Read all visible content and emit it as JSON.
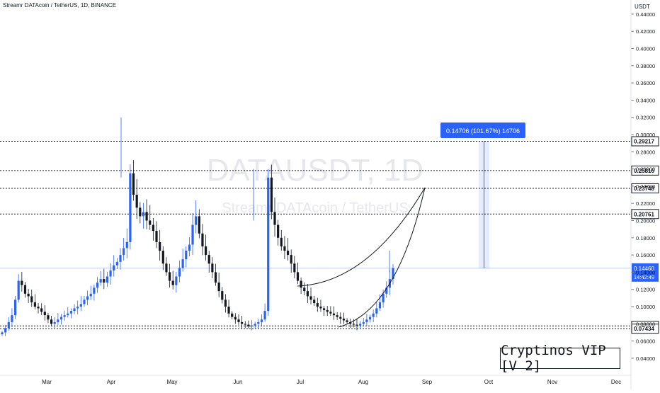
{
  "header": {
    "title": "Streamr DATAcoin / TetherUS, 1D, BINANCE"
  },
  "axis": {
    "unit": "USDT"
  },
  "watermark": {
    "symbol": "DATAUSDT, 1D",
    "name": "Streamr DATAcoin / TetherUS"
  },
  "badge": {
    "text": "Cryptinos VIP [V 2]"
  },
  "measure": {
    "label": "0.14706 (101.67%) 14706",
    "from": 0.1446,
    "to": 0.29217
  },
  "current": {
    "price": "0.14460",
    "countdown": "14:42:49"
  },
  "colors": {
    "up": "#2962ff",
    "down": "#131722",
    "accent": "#2962ff",
    "grid": "#e0e3eb"
  },
  "chart_data": {
    "type": "candlestick",
    "x_ticks": [
      "Mar",
      "Apr",
      "May",
      "Jun",
      "Jul",
      "Aug",
      "Sep",
      "Oct",
      "Nov",
      "Dec"
    ],
    "y_ticks": [
      "0.04000",
      "0.06000",
      "0.08000",
      "0.10000",
      "0.12000",
      "0.14000",
      "0.16000",
      "0.18000",
      "0.20000",
      "0.22000",
      "0.24000",
      "0.26000",
      "0.28000",
      "0.30000",
      "0.32000",
      "0.34000",
      "0.36000",
      "0.38000",
      "0.40000",
      "0.42000",
      "0.44000"
    ],
    "ylim": [
      0.03,
      0.45
    ],
    "levels": [
      {
        "value": 0.29217,
        "label": "0.29217"
      },
      {
        "value": 0.25816,
        "label": "0.25816"
      },
      {
        "value": 0.23748,
        "label": "0.23748"
      },
      {
        "value": 0.20761,
        "label": "0.20761"
      },
      {
        "value": 0.07755,
        "label": "0.07755"
      },
      {
        "value": 0.07434,
        "label": "0.07434"
      }
    ],
    "close_series": [
      0.07,
      0.075,
      0.082,
      0.09,
      0.108,
      0.13,
      0.125,
      0.115,
      0.112,
      0.105,
      0.1,
      0.098,
      0.094,
      0.09,
      0.085,
      0.08,
      0.082,
      0.085,
      0.088,
      0.09,
      0.092,
      0.095,
      0.098,
      0.1,
      0.103,
      0.108,
      0.112,
      0.115,
      0.122,
      0.128,
      0.132,
      0.128,
      0.135,
      0.142,
      0.148,
      0.152,
      0.16,
      0.168,
      0.175,
      0.255,
      0.23,
      0.215,
      0.205,
      0.21,
      0.2,
      0.195,
      0.188,
      0.175,
      0.165,
      0.15,
      0.14,
      0.13,
      0.125,
      0.135,
      0.145,
      0.155,
      0.165,
      0.172,
      0.195,
      0.205,
      0.185,
      0.17,
      0.16,
      0.15,
      0.14,
      0.128,
      0.118,
      0.108,
      0.1,
      0.092,
      0.088,
      0.085,
      0.082,
      0.08,
      0.079,
      0.077,
      0.078,
      0.08,
      0.082,
      0.085,
      0.095,
      0.25,
      0.21,
      0.195,
      0.18,
      0.17,
      0.165,
      0.16,
      0.15,
      0.14,
      0.13,
      0.122,
      0.118,
      0.112,
      0.108,
      0.104,
      0.1,
      0.098,
      0.096,
      0.094,
      0.092,
      0.09,
      0.088,
      0.086,
      0.084,
      0.082,
      0.08,
      0.079,
      0.078,
      0.08,
      0.082,
      0.085,
      0.088,
      0.092,
      0.098,
      0.105,
      0.115,
      0.122,
      0.132,
      0.145
    ]
  }
}
